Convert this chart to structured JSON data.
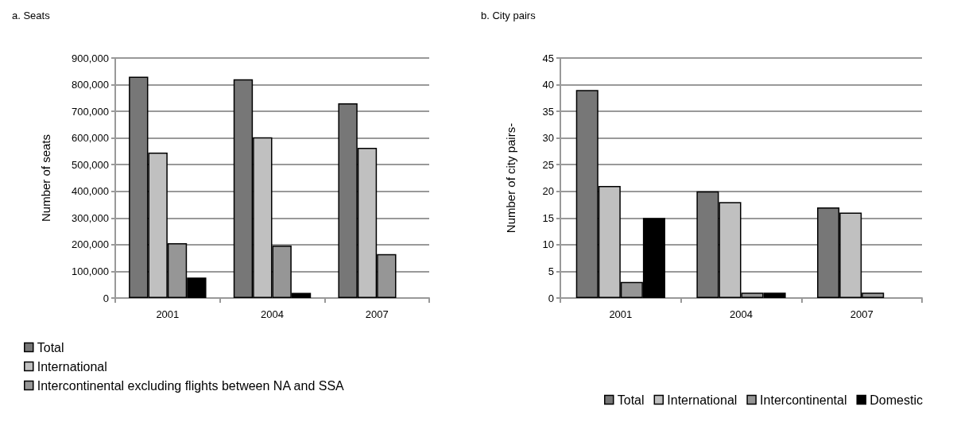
{
  "chart_data": [
    {
      "type": "bar",
      "title": "a. Seats",
      "ylabel": "Number of seats",
      "categories": [
        "2001",
        "2004",
        "2007"
      ],
      "series": [
        {
          "name": "Total",
          "color": "#777777",
          "values": [
            830000,
            820000,
            730000
          ]
        },
        {
          "name": "International",
          "color": "#c0c0c0",
          "values": [
            545000,
            603000,
            563000
          ]
        },
        {
          "name": "Intercontinental excluding flights between NA and SSA",
          "color": "#969696",
          "values": [
            206000,
            197000,
            165000
          ]
        },
        {
          "color": "#000000",
          "values": [
            77000,
            19000,
            null
          ]
        }
      ],
      "ylim": [
        0,
        900000
      ],
      "yticks": [
        {
          "value": 0,
          "label": "0"
        },
        {
          "value": 100000,
          "label": "100,000"
        },
        {
          "value": 200000,
          "label": "200,000"
        },
        {
          "value": 300000,
          "label": "300,000"
        },
        {
          "value": 400000,
          "label": "400,000"
        },
        {
          "value": 500000,
          "label": "500,000"
        },
        {
          "value": 600000,
          "label": "600,000"
        },
        {
          "value": 700000,
          "label": "700,000"
        },
        {
          "value": 800000,
          "label": "800,000"
        },
        {
          "value": 900000,
          "label": "900,000"
        }
      ],
      "grid": "y",
      "legend": "bottom left"
    },
    {
      "type": "bar",
      "title": "b. City pairs",
      "ylabel": "Number of city pairs-",
      "categories": [
        "2001",
        "2004",
        "2007"
      ],
      "series": [
        {
          "name": "Total",
          "color": "#777777",
          "values": [
            39,
            20,
            17
          ]
        },
        {
          "name": "International",
          "color": "#c0c0c0",
          "values": [
            21,
            18,
            16
          ]
        },
        {
          "name": "Intercontinental",
          "color": "#969696",
          "values": [
            3,
            1,
            1
          ]
        },
        {
          "name": "Domestic",
          "color": "#000000",
          "values": [
            15,
            1,
            null
          ]
        }
      ],
      "ylim": [
        0,
        45
      ],
      "yticks": [
        0,
        5,
        10,
        15,
        20,
        25,
        30,
        35,
        40,
        45
      ],
      "grid": "y",
      "legend": "bottom"
    }
  ]
}
